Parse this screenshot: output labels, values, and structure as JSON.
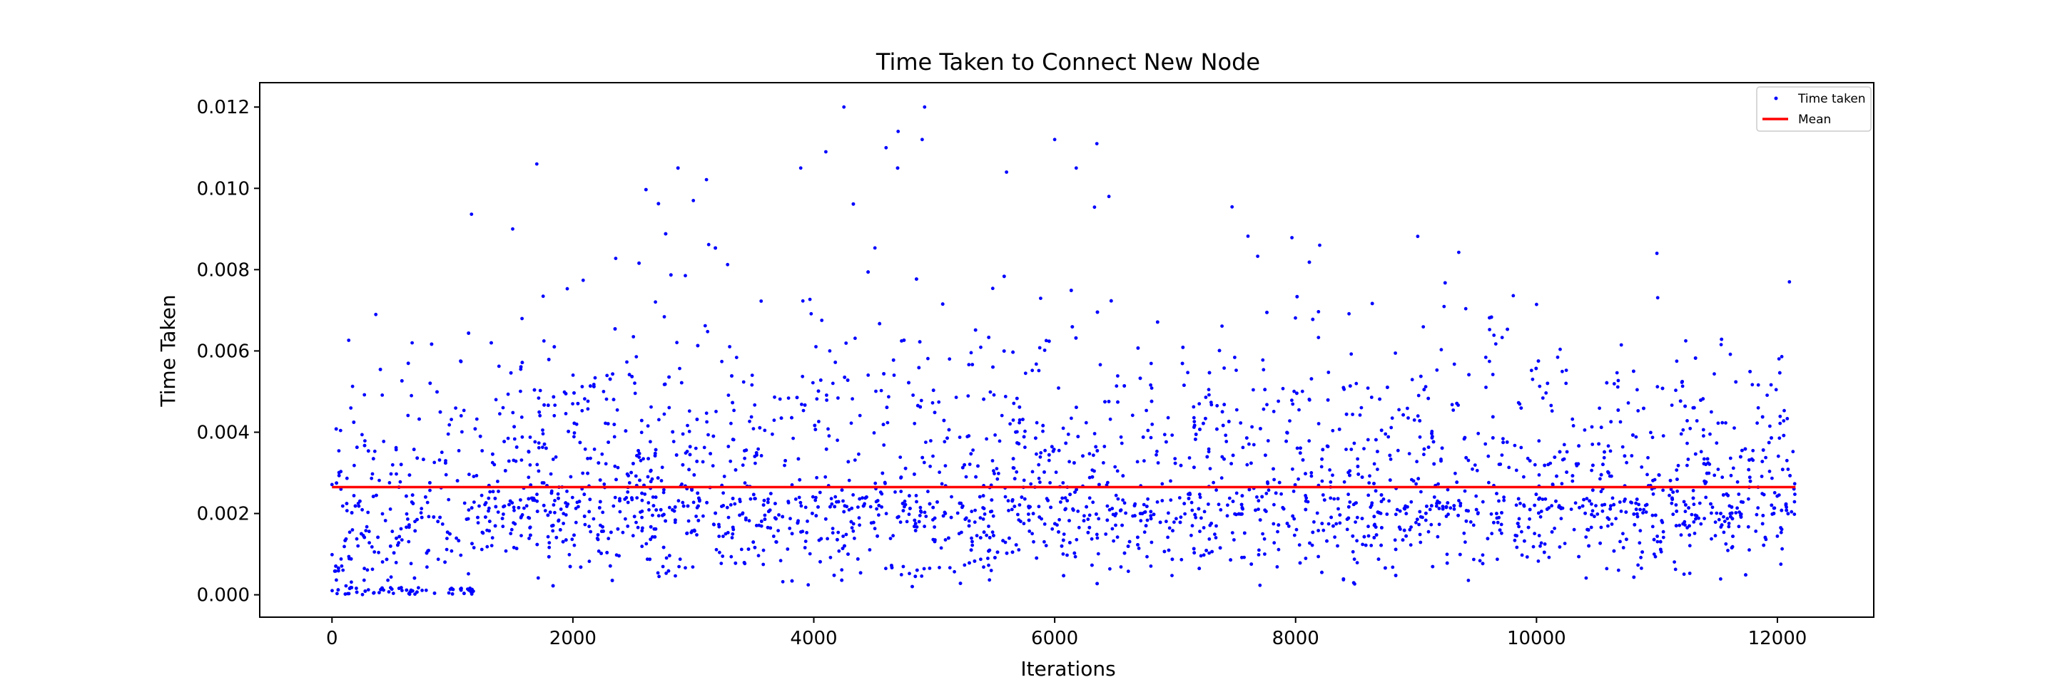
{
  "chart_data": {
    "type": "scatter",
    "title": "Time Taken to Connect New Node",
    "xlabel": "Iterations",
    "ylabel": "Time Taken",
    "xlim": [
      -600,
      12800
    ],
    "ylim": [
      -0.00055,
      0.0126
    ],
    "x_ticks": [
      0,
      2000,
      4000,
      6000,
      8000,
      10000,
      12000
    ],
    "x_tick_labels": [
      "0",
      "2000",
      "4000",
      "6000",
      "8000",
      "10000",
      "12000"
    ],
    "y_ticks": [
      0.0,
      0.002,
      0.004,
      0.006,
      0.008,
      0.01,
      0.012
    ],
    "y_tick_labels": [
      "0.000",
      "0.002",
      "0.004",
      "0.006",
      "0.008",
      "0.010",
      "0.012"
    ],
    "grid": false,
    "legend_position": "top-right",
    "series": [
      {
        "name": "Time taken",
        "kind": "points",
        "color": "#0000ff",
        "n_points": 12150,
        "x_range": [
          0,
          12150
        ],
        "typical_range": [
          0.0005,
          0.0045
        ],
        "overall_range": [
          0.0,
          0.012
        ],
        "initial_segment": {
          "x_range": [
            0,
            1200
          ],
          "value_range": [
            0.0,
            0.0002
          ]
        },
        "sample_outliers": [
          {
            "x": 1700,
            "y": 0.0106
          },
          {
            "x": 4100,
            "y": 0.0109
          },
          {
            "x": 4250,
            "y": 0.012
          },
          {
            "x": 4600,
            "y": 0.011
          },
          {
            "x": 4700,
            "y": 0.0114
          },
          {
            "x": 4900,
            "y": 0.0112
          },
          {
            "x": 4920,
            "y": 0.012
          },
          {
            "x": 5600,
            "y": 0.0104
          },
          {
            "x": 6000,
            "y": 0.0112
          },
          {
            "x": 6350,
            "y": 0.0111
          },
          {
            "x": 6450,
            "y": 0.0098
          },
          {
            "x": 3000,
            "y": 0.0097
          },
          {
            "x": 1500,
            "y": 0.009
          },
          {
            "x": 8200,
            "y": 0.0086
          },
          {
            "x": 11000,
            "y": 0.0084
          },
          {
            "x": 12100,
            "y": 0.0077
          }
        ]
      },
      {
        "name": "Mean",
        "kind": "line",
        "color": "#ff0000",
        "x": [
          0,
          12150
        ],
        "y": [
          0.00265,
          0.00265
        ]
      }
    ]
  }
}
